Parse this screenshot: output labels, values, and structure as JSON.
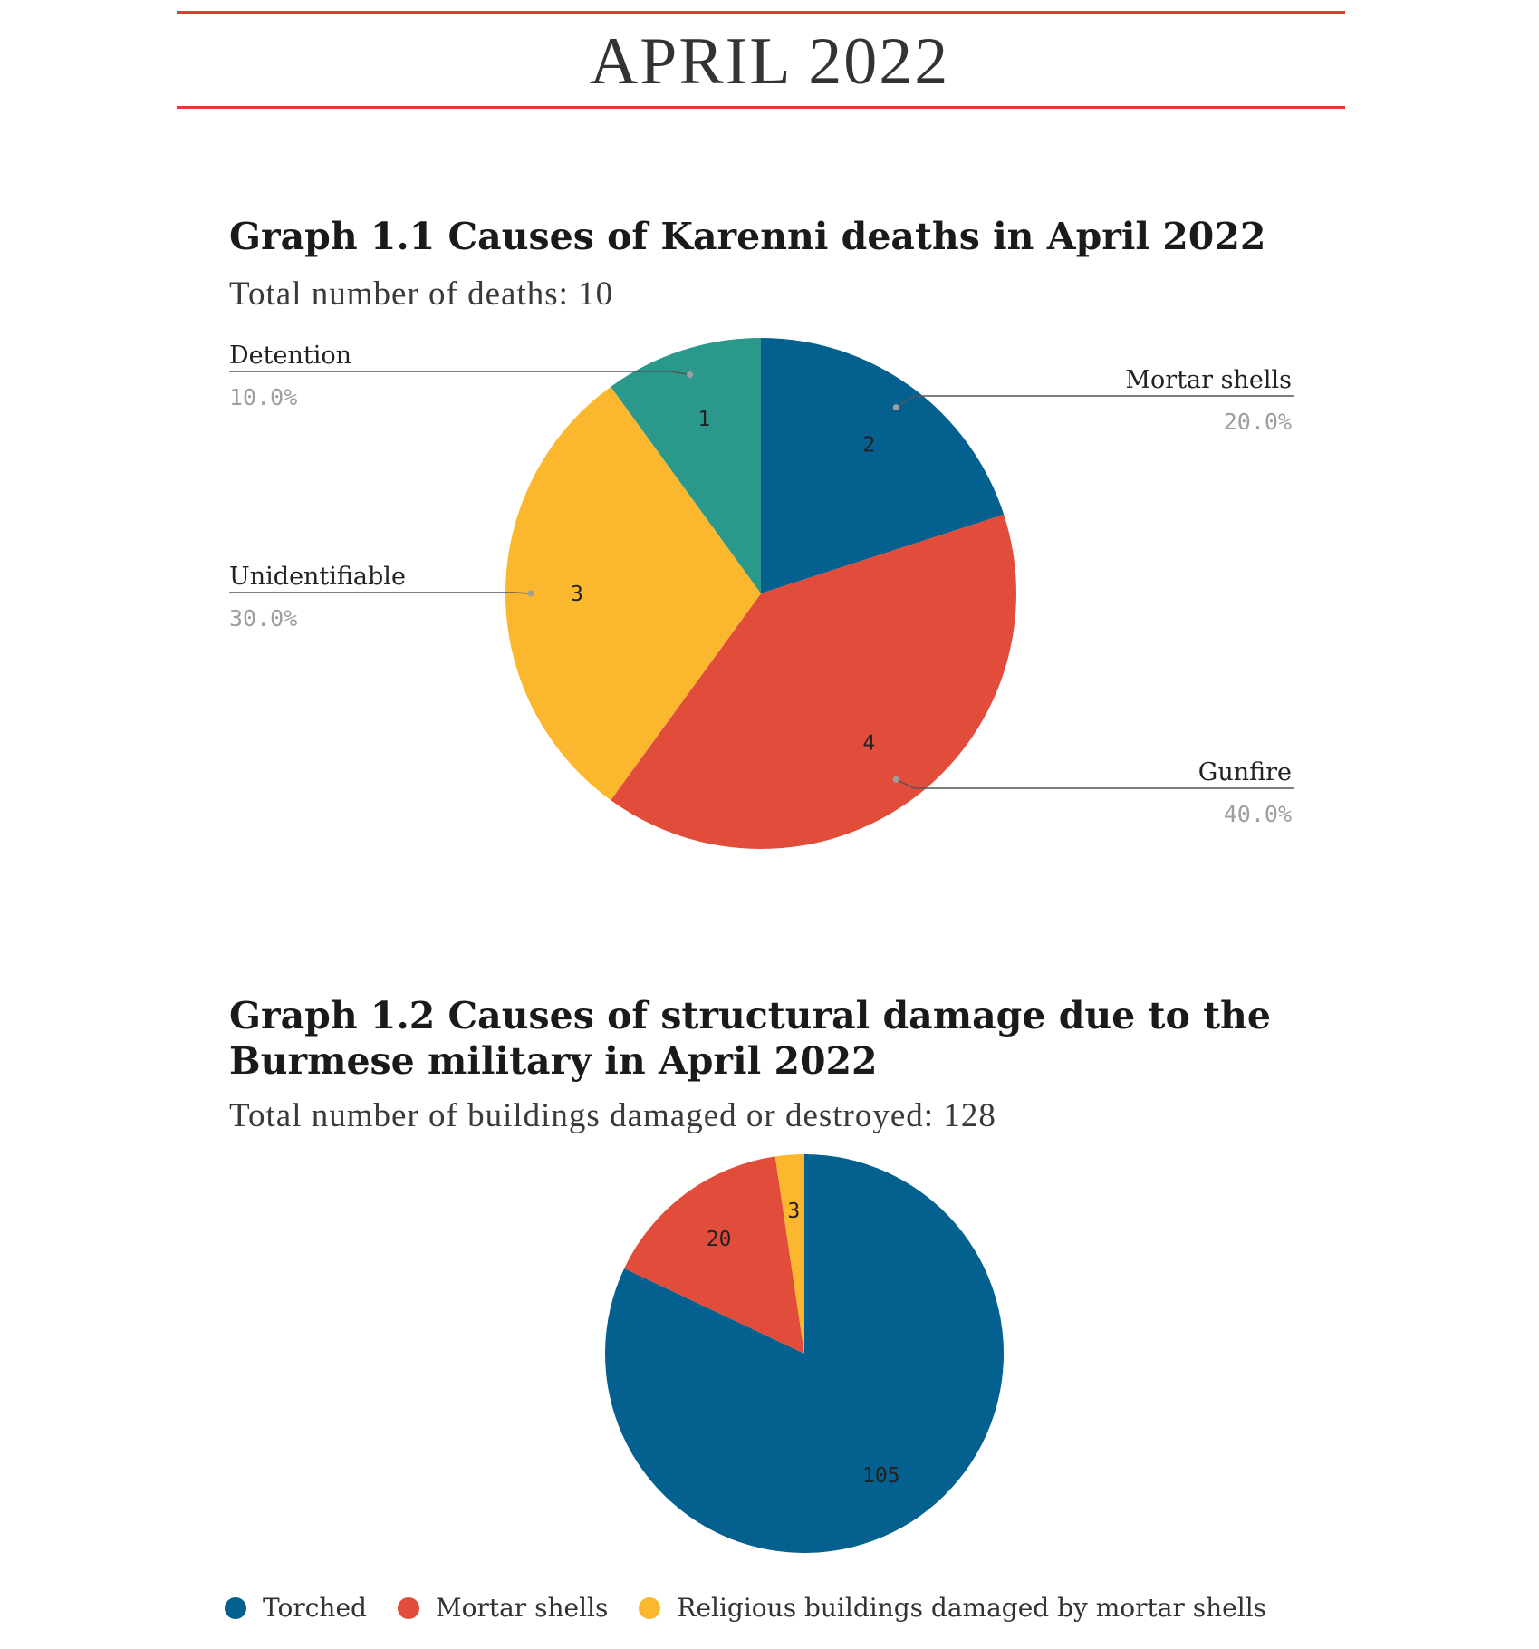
{
  "page": {
    "title": "APRIL 2022",
    "rule_color": "#e53935"
  },
  "graph1": {
    "title": "Graph 1.1 Causes of Karenni deaths in April 2022",
    "subtitle": "Total number of deaths: 10"
  },
  "graph2": {
    "title_line1": "Graph 1.2 Causes of structural damage due to the",
    "title_line2": "Burmese military in April 2022",
    "subtitle": "Total number of buildings damaged or destroyed: 128"
  },
  "chart_data": [
    {
      "type": "pie",
      "title": "Graph 1.1 Causes of Karenni deaths in April 2022",
      "subtitle": "Total number of deaths: 10",
      "start_angle_deg": 0,
      "slices": [
        {
          "label": "Mortar shells",
          "value": 2,
          "percent": "20.0%",
          "color": "#03608f"
        },
        {
          "label": "Gunfire",
          "value": 4,
          "percent": "40.0%",
          "color": "#e24d3b"
        },
        {
          "label": "Unidentifiable",
          "value": 3,
          "percent": "30.0%",
          "color": "#fbb72e"
        },
        {
          "label": "Detention",
          "value": 1,
          "percent": "10.0%",
          "color": "#2a998b"
        }
      ]
    },
    {
      "type": "pie",
      "title": "Graph 1.2 Causes of structural damage due to the Burmese military in April 2022",
      "subtitle": "Total number of buildings damaged or destroyed: 128",
      "start_angle_deg": 0,
      "slices": [
        {
          "label": "Torched",
          "value": 105,
          "color": "#03608f"
        },
        {
          "label": "Mortar shells",
          "value": 20,
          "color": "#e24d3b"
        },
        {
          "label": "Religious buildings damaged by mortar shells",
          "value": 3,
          "color": "#fbb72e"
        }
      ],
      "legend_position": "bottom-left"
    }
  ]
}
